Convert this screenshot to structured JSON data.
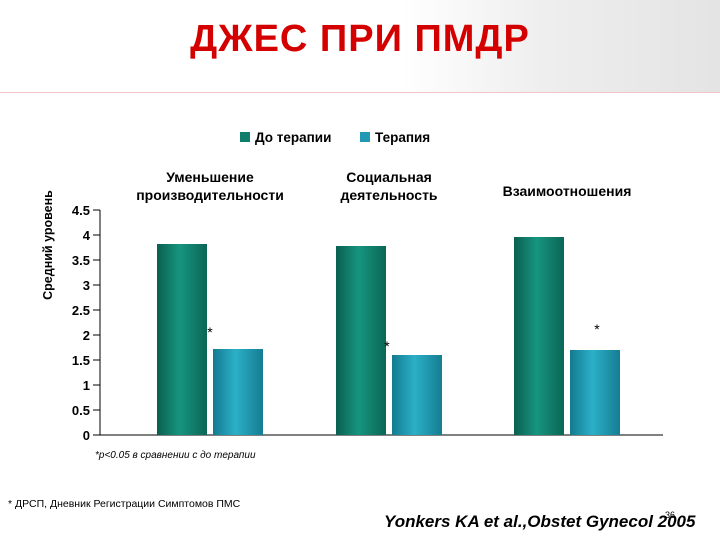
{
  "slide": {
    "title": "ДЖЕС ПРИ ПМДР",
    "footnote": "* ДРСП,  Дневник Регистрации Симптомов ПМС",
    "citation": "Yonkers KA et al.,Obstet Gynecol 2005",
    "slide_number": "36",
    "colors": {
      "title": "#d40000",
      "pre": "#0f7f6c",
      "treat": "#1f9ab2"
    }
  },
  "chart_data": {
    "type": "bar",
    "title": "",
    "ylabel": "Средний уровень",
    "xlabel": "",
    "ylim": [
      0,
      4.5
    ],
    "yticks": [
      "0",
      "0.5",
      "1",
      "1.5",
      "2",
      "2.5",
      "3",
      "3.5",
      "4",
      "4.5"
    ],
    "categories": [
      [
        "Уменьшение",
        "производительности"
      ],
      [
        "Социальная",
        "деятельность"
      ],
      [
        "Взаимоотношения"
      ]
    ],
    "series": [
      {
        "name": "До терапии",
        "values": [
          3.82,
          3.78,
          3.96
        ]
      },
      {
        "name": "Терапия",
        "values": [
          1.72,
          1.6,
          1.7
        ]
      }
    ],
    "significance_markers": [
      "*",
      "*",
      "*"
    ],
    "annotation": "*p<0.05 в сравнении с до терапии",
    "legend_position": "top",
    "grid": false
  }
}
